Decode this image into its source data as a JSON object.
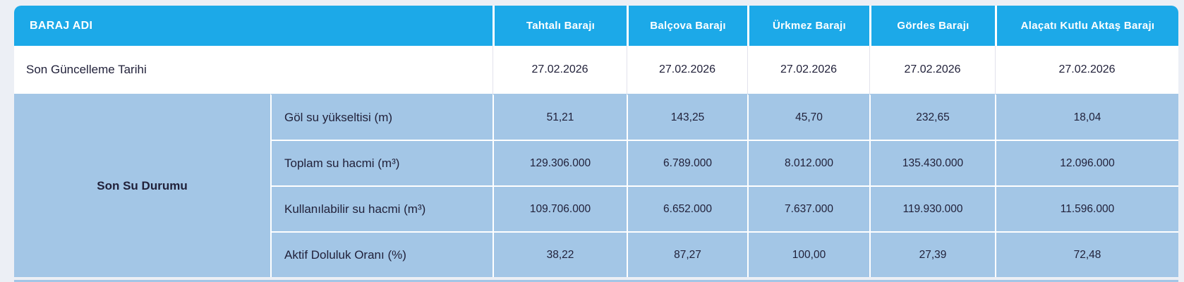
{
  "table": {
    "header": {
      "label": "BARAJ ADI",
      "columns": [
        "Tahtalı Barajı",
        "Balçova Barajı",
        "Ürkmez Barajı",
        "Gördes Barajı",
        "Alaçatı Kutlu Aktaş Barajı"
      ]
    },
    "update_row": {
      "label": "Son Güncelleme Tarihi",
      "values": [
        "27.02.2026",
        "27.02.2026",
        "27.02.2026",
        "27.02.2026",
        "27.02.2026"
      ]
    },
    "group": {
      "label": "Son Su Durumu",
      "rows": [
        {
          "label": "Göl su yükseltisi (m)",
          "values": [
            "51,21",
            "143,25",
            "45,70",
            "232,65",
            "18,04"
          ]
        },
        {
          "label": "Toplam su hacmi (m³)",
          "values": [
            "129.306.000",
            "6.789.000",
            "8.012.000",
            "135.430.000",
            "12.096.000"
          ]
        },
        {
          "label": "Kullanılabilir su hacmi (m³)",
          "values": [
            "109.706.000",
            "6.652.000",
            "7.637.000",
            "119.930.000",
            "11.596.000"
          ]
        },
        {
          "label": "Aktif Doluluk Oranı (%)",
          "values": [
            "38,22",
            "87,27",
            "100,00",
            "27,39",
            "72,48"
          ]
        }
      ]
    },
    "colors": {
      "header_blue": "#1ca9e8",
      "cell_blue": "#a3c6e6",
      "page_background": "#eceff5",
      "text_dark": "#21213a"
    }
  }
}
